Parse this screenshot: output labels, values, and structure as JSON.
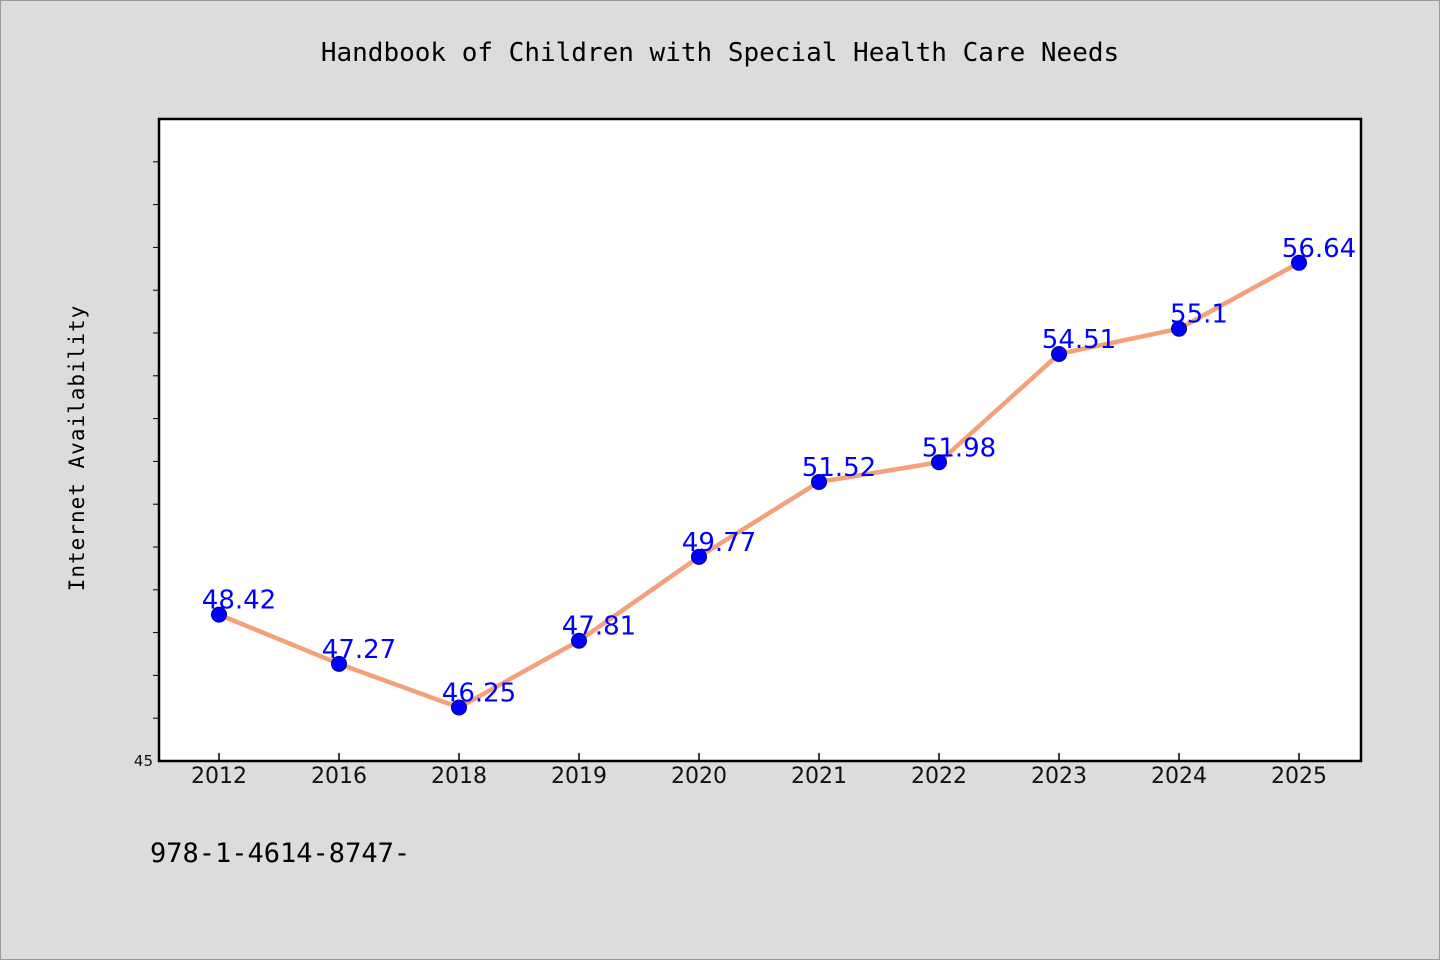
{
  "chart_data": {
    "type": "line",
    "title": "Handbook of Children with Special Health Care Needs",
    "xlabel": "",
    "ylabel": "Internet Availability",
    "categories": [
      "2012",
      "2016",
      "2018",
      "2019",
      "2020",
      "2021",
      "2022",
      "2023",
      "2024",
      "2025"
    ],
    "series": [
      {
        "values": [
          48.42,
          47.27,
          46.25,
          47.81,
          49.77,
          51.52,
          51.98,
          54.51,
          55.1,
          56.64
        ],
        "data_labels": [
          "48.42",
          "47.27",
          "46.25",
          "47.81",
          "49.77",
          "51.52",
          "51.98",
          "54.51",
          "55.1",
          "56.64"
        ]
      }
    ],
    "ylim": [
      45,
      60
    ],
    "ytick_labels": [
      "45"
    ],
    "grid": false,
    "line_color": "#f4a07a",
    "marker_color": "#0000ff"
  },
  "footer_text": "978-1-4614-8747-",
  "colors": {
    "background": "#dcdcdc",
    "plot_area": "#ffffff",
    "data_label": "#0000ff"
  }
}
